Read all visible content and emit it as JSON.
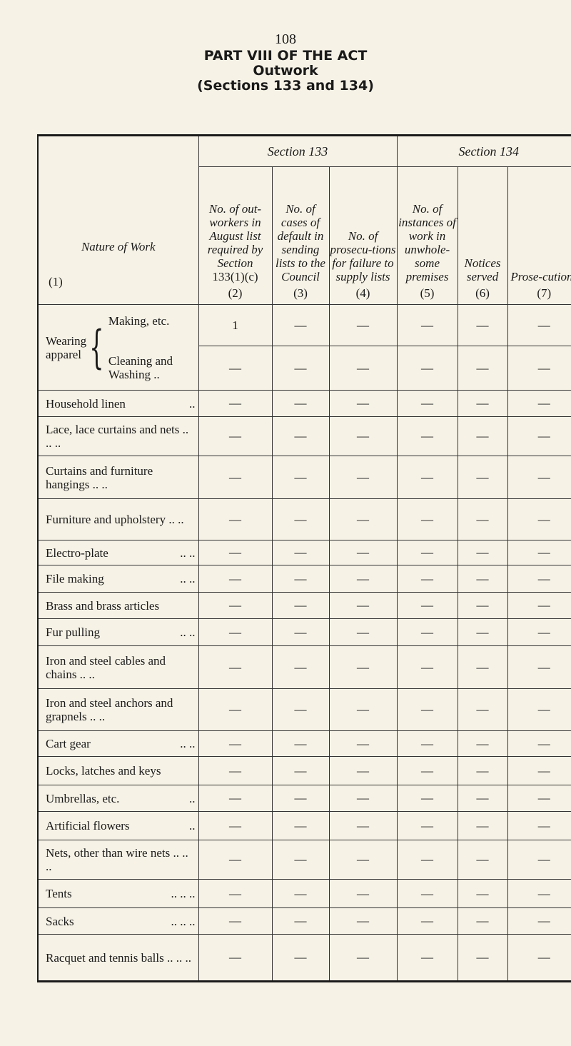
{
  "page_number": "108",
  "title": {
    "line1": "PART VIII OF THE ACT",
    "line2": "Outwork",
    "line3": "(Sections 133 and 134)"
  },
  "table": {
    "section_133": "Section 133",
    "section_134": "Section 134",
    "headers": [
      {
        "text": "Nature of Work",
        "num": "(1)"
      },
      {
        "text": "No. of out-workers in August list required by Section",
        "extra": "133(1)(c)",
        "num": "(2)"
      },
      {
        "text": "No. of cases of default in sending lists to the Council",
        "num": "(3)"
      },
      {
        "text": "No. of prosecu-tions for failure to supply lists",
        "num": "(4)"
      },
      {
        "text": "No. of instances of work in unwhole-some premises",
        "num": "(5)"
      },
      {
        "text": "Notices served",
        "num": "(6)"
      },
      {
        "text": "Prose-cutions",
        "num": "(7)"
      }
    ],
    "wearing_apparel": {
      "group": "Wearing apparel",
      "rows": [
        {
          "label": "Making, etc.",
          "values": [
            "1",
            "—",
            "—",
            "—",
            "—",
            "—"
          ]
        },
        {
          "label": "Cleaning and Washing ..",
          "values": [
            "—",
            "—",
            "—",
            "—",
            "—",
            "—"
          ]
        }
      ]
    },
    "rows": [
      {
        "label": "Household linen",
        "dots": "..",
        "values": [
          "—",
          "—",
          "—",
          "—",
          "—",
          "—"
        ]
      },
      {
        "label": "Lace, lace curtains and nets .. .. ..",
        "values": [
          "—",
          "—",
          "—",
          "—",
          "—",
          "—"
        ]
      },
      {
        "label": "Curtains and furniture hangings .. ..",
        "values": [
          "—",
          "—",
          "—",
          "—",
          "—",
          "—"
        ]
      },
      {
        "label": "Furniture and upholstery .. ..",
        "values": [
          "—",
          "—",
          "—",
          "—",
          "—",
          "—"
        ]
      },
      {
        "label": "Electro-plate",
        "dots": ".. ..",
        "values": [
          "—",
          "—",
          "—",
          "—",
          "—",
          "—"
        ]
      },
      {
        "label": "File making",
        "dots": ".. ..",
        "values": [
          "—",
          "—",
          "—",
          "—",
          "—",
          "—"
        ]
      },
      {
        "label": "Brass and brass articles",
        "values": [
          "—",
          "—",
          "—",
          "—",
          "—",
          "—"
        ]
      },
      {
        "label": "Fur pulling",
        "dots": ".. ..",
        "values": [
          "—",
          "—",
          "—",
          "—",
          "—",
          "—"
        ]
      },
      {
        "label": "Iron and steel cables and chains .. ..",
        "values": [
          "—",
          "—",
          "—",
          "—",
          "—",
          "—"
        ]
      },
      {
        "label": "Iron and steel anchors and grapnels .. ..",
        "values": [
          "—",
          "—",
          "—",
          "—",
          "—",
          "—"
        ]
      },
      {
        "label": "Cart gear",
        "dots": ".. ..",
        "values": [
          "—",
          "—",
          "—",
          "—",
          "—",
          "—"
        ]
      },
      {
        "label": "Locks, latches and keys",
        "values": [
          "—",
          "—",
          "—",
          "—",
          "—",
          "—"
        ]
      },
      {
        "label": "Umbrellas, etc.",
        "dots": "..",
        "values": [
          "—",
          "—",
          "—",
          "—",
          "—",
          "—"
        ]
      },
      {
        "label": "Artificial flowers",
        "dots": "..",
        "values": [
          "—",
          "—",
          "—",
          "—",
          "—",
          "—"
        ]
      },
      {
        "label": "Nets, other than wire nets .. .. ..",
        "values": [
          "—",
          "—",
          "—",
          "—",
          "—",
          "—"
        ]
      },
      {
        "label": "Tents",
        "dots": ".. .. ..",
        "values": [
          "—",
          "—",
          "—",
          "—",
          "—",
          "—"
        ]
      },
      {
        "label": "Sacks",
        "dots": ".. .. ..",
        "values": [
          "—",
          "—",
          "—",
          "—",
          "—",
          "—"
        ]
      },
      {
        "label": "Racquet and tennis balls .. .. ..",
        "values": [
          "—",
          "—",
          "—",
          "—",
          "—",
          "—"
        ]
      }
    ]
  }
}
